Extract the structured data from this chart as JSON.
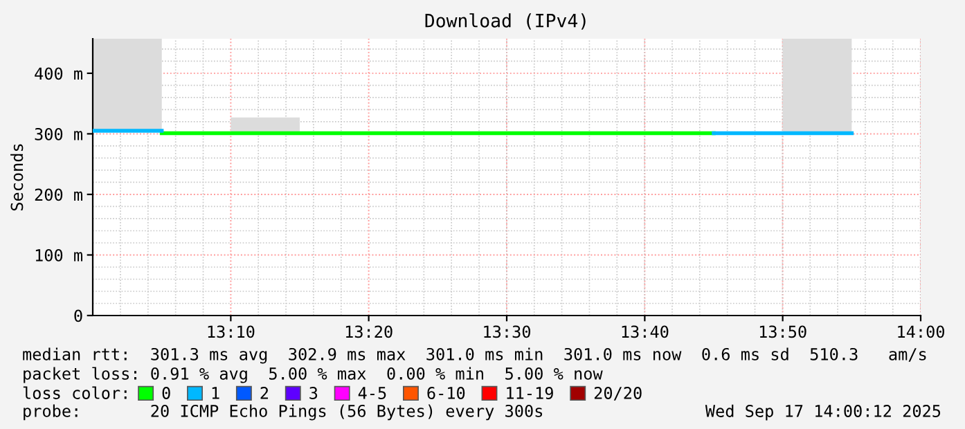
{
  "chart_data": {
    "type": "line",
    "title": "Download (IPv4)",
    "ylabel": "Seconds",
    "xlim": [
      13.0,
      14.0
    ],
    "ylim": [
      0,
      457
    ],
    "xticks": [
      {
        "value": 13.1667,
        "label": "13:10"
      },
      {
        "value": 13.3333,
        "label": "13:20"
      },
      {
        "value": 13.5,
        "label": "13:30"
      },
      {
        "value": 13.6667,
        "label": "13:40"
      },
      {
        "value": 13.8333,
        "label": "13:50"
      },
      {
        "value": 14.0,
        "label": "14:00"
      }
    ],
    "yticks": [
      0,
      {
        "value": 100,
        "label": "100 m"
      },
      {
        "value": 200,
        "label": "200 m"
      },
      {
        "value": 300,
        "label": "300 m"
      },
      {
        "value": 400,
        "label": "400 m"
      }
    ],
    "grid": true,
    "legend": "bottom",
    "legend_title": "loss color:",
    "series": [
      {
        "type": "bar",
        "color": "#dcdcdc",
        "x": [
          13.0417,
          13.2083,
          13.875
        ],
        "base": [
          303,
          303,
          300
        ],
        "values": [
          154,
          24,
          157
        ]
      },
      {
        "name": "0",
        "color": "#00ff00",
        "x": [
          13.0833,
          13.75
        ],
        "values": [
          301,
          301
        ]
      },
      {
        "name": "1",
        "color": "#00b8ff",
        "x": [
          13.0,
          13.0833
        ],
        "values": [
          305,
          305
        ]
      },
      {
        "color": "#00b8ff",
        "x": [
          13.75,
          13.9167
        ],
        "values": [
          301,
          301
        ]
      },
      {
        "name": "2",
        "color": "#0059ff"
      },
      {
        "name": "3",
        "color": "#5e00ff"
      },
      {
        "name": "4-5",
        "color": "#ff00ff"
      },
      {
        "name": "6-10",
        "color": "#ff5500"
      },
      {
        "name": "11-19",
        "color": "#ff0000"
      },
      {
        "name": "20/20",
        "color": "#a10000"
      }
    ],
    "annotations": [
      "median rtt:  301.3 ms avg  302.9 ms max  301.0 ms min  301.0 ms now  0.6 ms sd  510.3   am/s",
      "packet loss: 0.91 % avg  5.00 % max  0.00 % min  5.00 % now",
      "probe:       20 ICMP Echo Pings (56 Bytes) every 300s",
      "Wed Sep 17 14:00:12 2025"
    ]
  }
}
